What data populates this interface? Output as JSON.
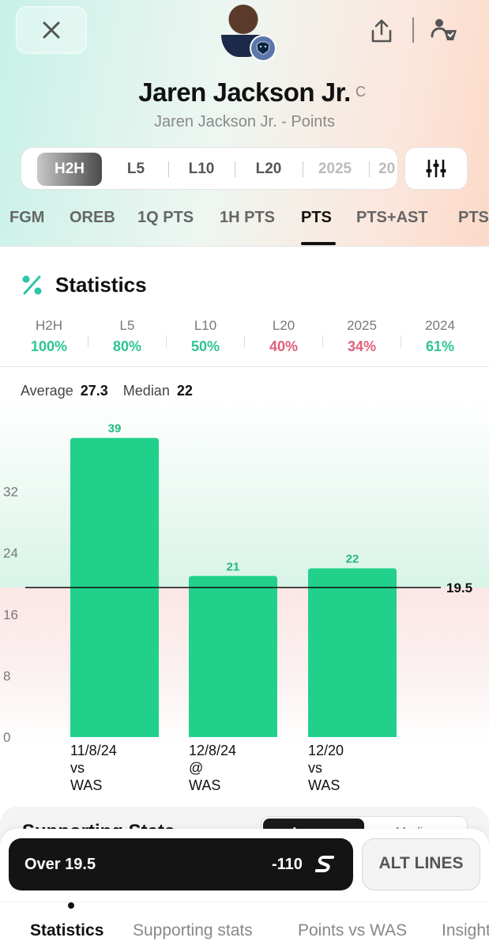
{
  "header": {
    "player_name": "Jaren Jackson Jr.",
    "position": "C",
    "subtitle": "Jaren Jackson Jr. - Points",
    "team_logo_text": "🐻"
  },
  "range_selector": {
    "items": [
      "H2H",
      "L5",
      "L10",
      "L20",
      "2025",
      "20"
    ],
    "active": "H2H"
  },
  "stat_tabs": {
    "items": [
      "FGM",
      "OREB",
      "1Q PTS",
      "1H PTS",
      "PTS",
      "PTS+AST",
      "PTS"
    ],
    "active": "PTS"
  },
  "statistics": {
    "title": "Statistics",
    "hit_rates": [
      {
        "label": "H2H",
        "value": "100%",
        "color": "#2ec592"
      },
      {
        "label": "L5",
        "value": "80%",
        "color": "#2ec592"
      },
      {
        "label": "L10",
        "value": "50%",
        "color": "#2ec592"
      },
      {
        "label": "L20",
        "value": "40%",
        "color": "#e0607a"
      },
      {
        "label": "2025",
        "value": "34%",
        "color": "#e0607a"
      },
      {
        "label": "2024",
        "value": "61%",
        "color": "#2ec592"
      }
    ],
    "average_label": "Average",
    "average_value": "27.3",
    "median_label": "Median",
    "median_value": "22"
  },
  "chart_data": {
    "type": "bar",
    "categories": [
      [
        "11/8/24",
        "vs",
        "WAS"
      ],
      [
        "12/8/24",
        "@",
        "WAS"
      ],
      [
        "12/20",
        "vs",
        "WAS"
      ]
    ],
    "values": [
      39,
      21,
      22
    ],
    "yticks": [
      0,
      8,
      16,
      24,
      32
    ],
    "ylim": [
      0,
      39
    ],
    "line_value": 19.5,
    "line_label": "19.5",
    "bar_color": "#21d18b",
    "label_color": "#21b980"
  },
  "supporting_stats": {
    "title": "Supporting Stats",
    "toggle_on": "Average",
    "toggle_off": "Median"
  },
  "bet_bar": {
    "over_label": "Over 19.5",
    "odds": "-110",
    "alt_lines_label": "ALT LINES"
  },
  "bottom_nav": {
    "items": [
      "Statistics",
      "Supporting stats",
      "Points vs WAS",
      "Insights"
    ],
    "active": "Statistics"
  }
}
